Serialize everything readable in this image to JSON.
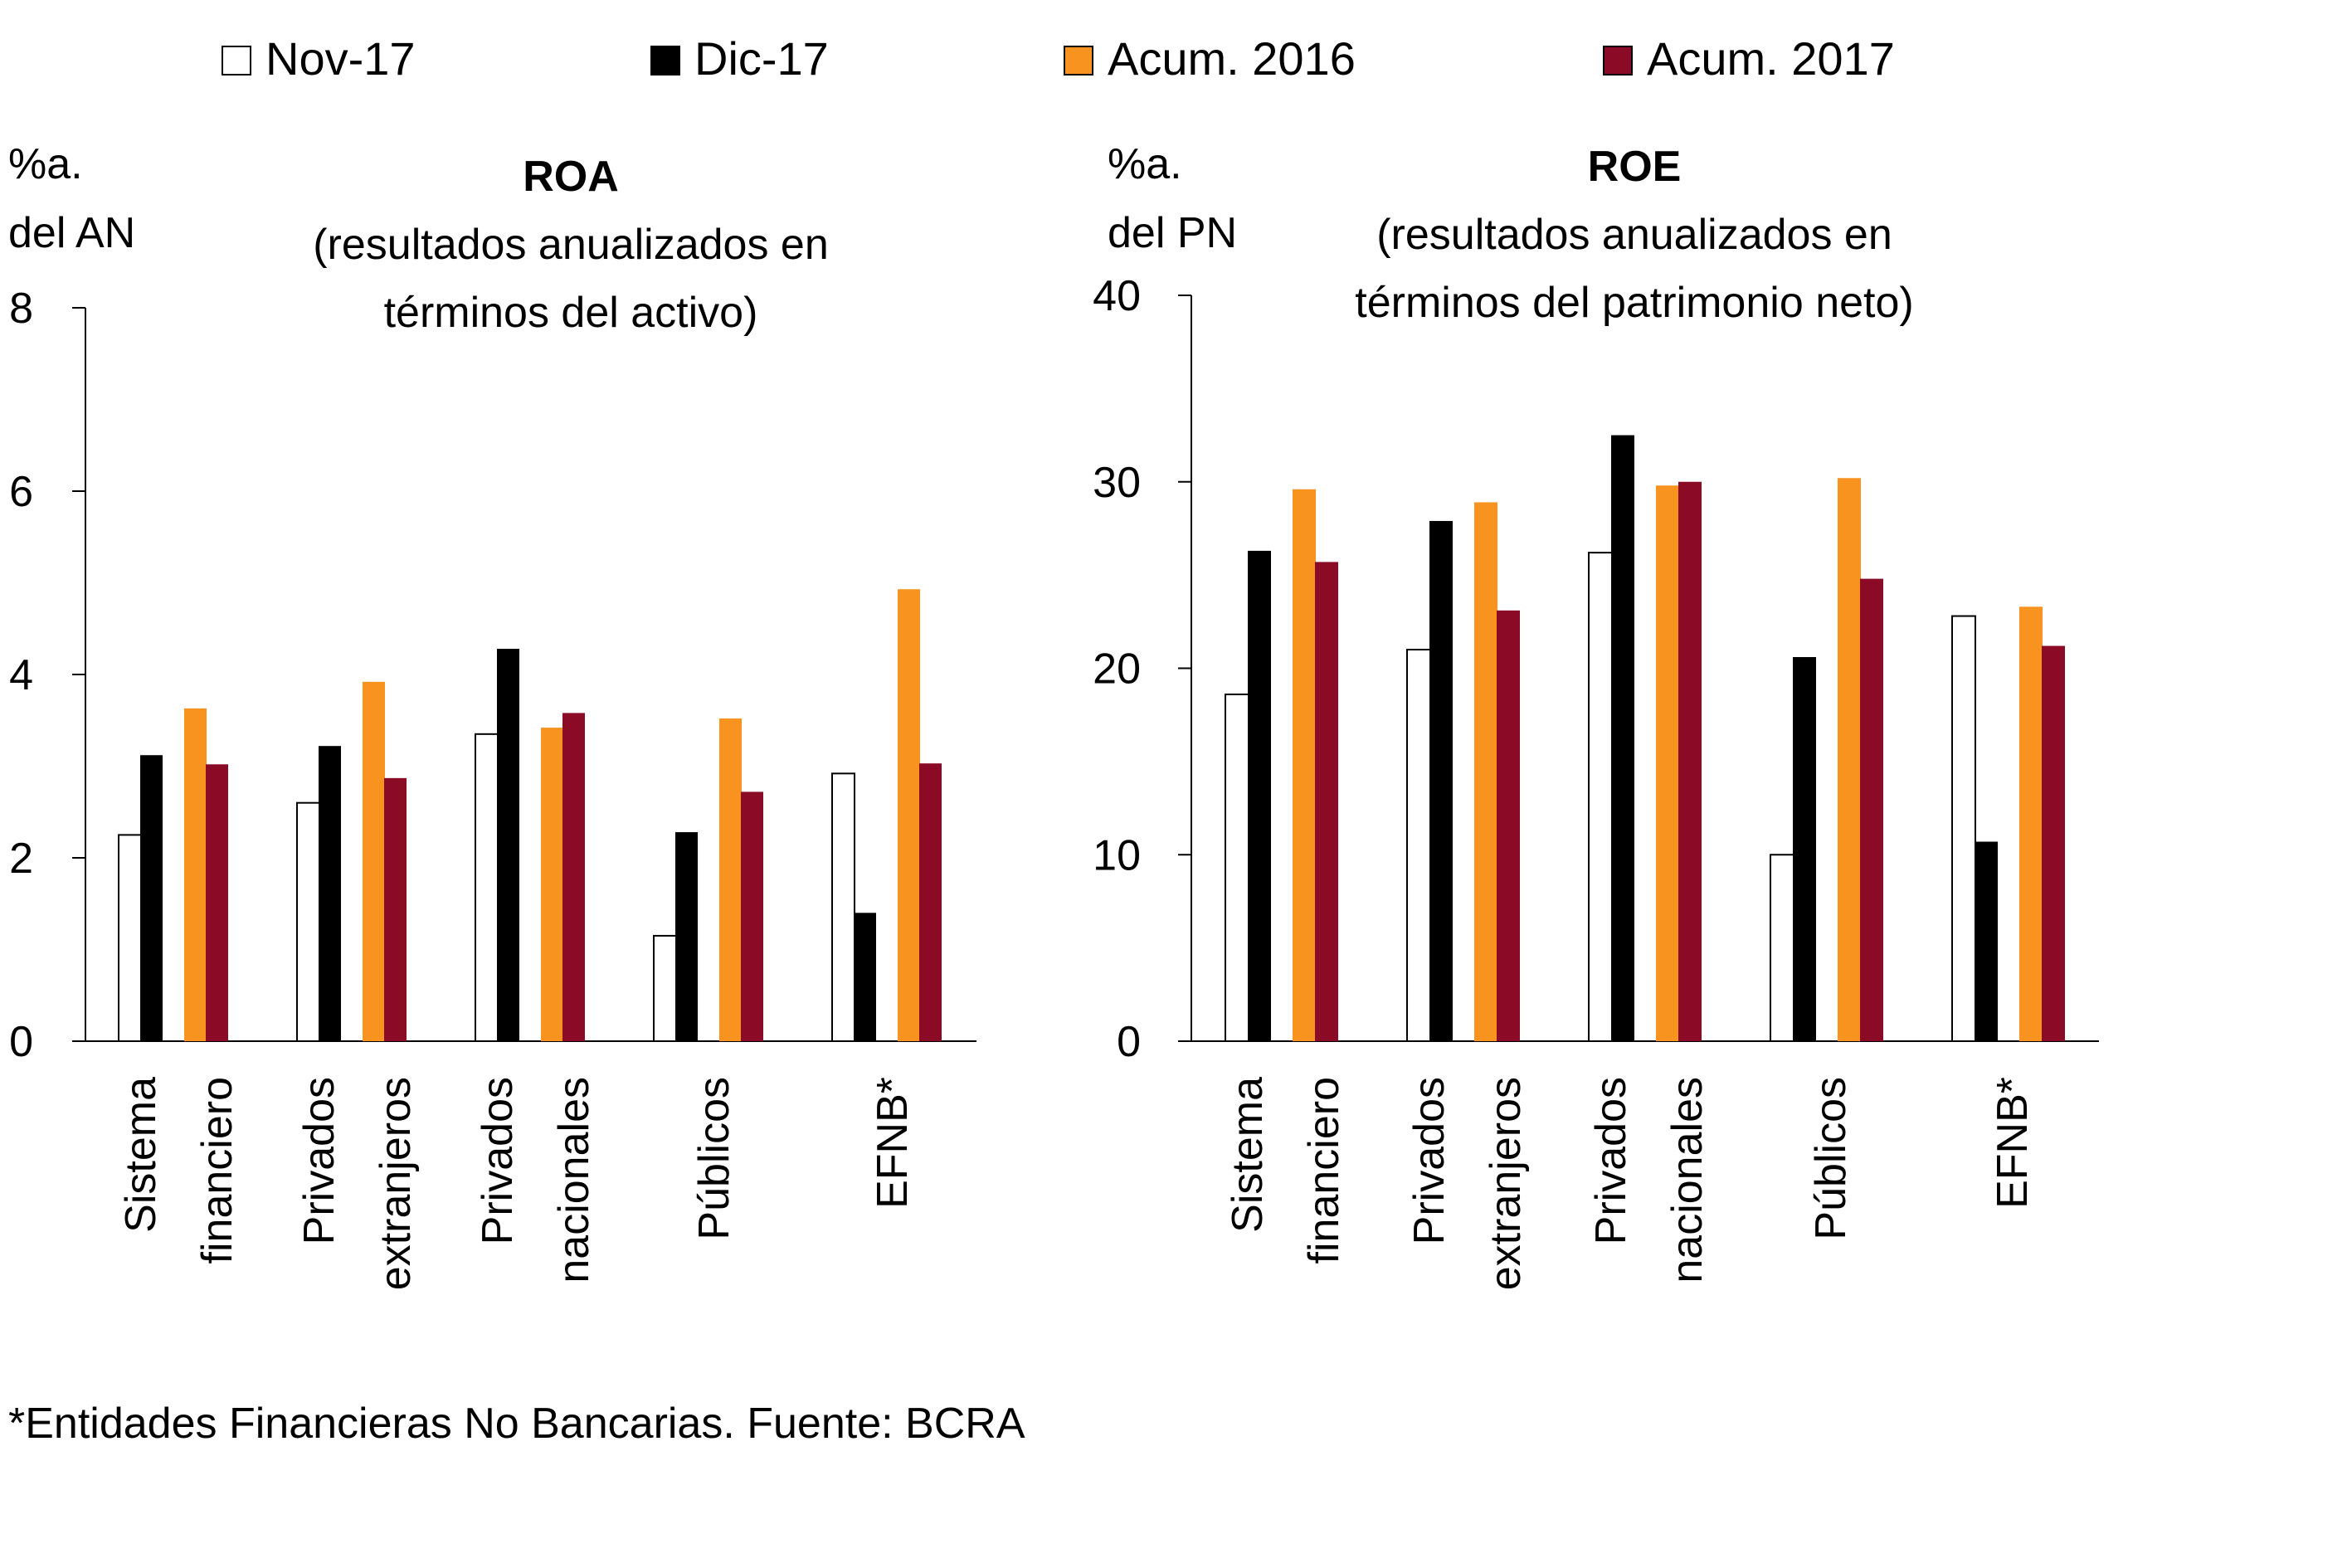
{
  "legend": {
    "series": [
      {
        "name": "Nov-17",
        "color": "#ffffff"
      },
      {
        "name": "Dic-17",
        "color": "#000000"
      },
      {
        "name": "Acum. 2016",
        "color": "#f7931e"
      },
      {
        "name": "Acum. 2017",
        "color": "#8b0a26"
      }
    ]
  },
  "footnote": "*Entidades Financieras No Bancarias. Fuente: BCRA",
  "chart_data": [
    {
      "type": "bar",
      "title": "ROA",
      "subtitle": [
        "(resultados anualizados en",
        "términos del activo)"
      ],
      "ylabel": [
        "%a.",
        "del AN"
      ],
      "ylim": [
        0,
        8
      ],
      "yticks": [
        0,
        2,
        4,
        6,
        8
      ],
      "categories": [
        [
          "Sistema",
          "financiero"
        ],
        [
          "Privados",
          "extranjeros"
        ],
        [
          "Privados",
          "nacionales"
        ],
        [
          "Públicos"
        ],
        [
          "EFNB*"
        ]
      ],
      "series": [
        {
          "name": "Nov-17",
          "values": [
            2.25,
            2.6,
            3.35,
            1.15,
            2.92
          ]
        },
        {
          "name": "Dic-17",
          "values": [
            3.12,
            3.22,
            4.28,
            2.28,
            1.4
          ]
        },
        {
          "name": "Acum. 2016",
          "values": [
            3.63,
            3.92,
            3.42,
            3.52,
            4.93
          ]
        },
        {
          "name": "Acum. 2017",
          "values": [
            3.02,
            2.87,
            3.58,
            2.72,
            3.03
          ]
        }
      ],
      "grid": false,
      "legend_position": "top"
    },
    {
      "type": "bar",
      "title": "ROE",
      "subtitle": [
        "(resultados anualizados en",
        "términos del patrimonio neto)"
      ],
      "ylabel": [
        "%a.",
        "del PN"
      ],
      "ylim": [
        0,
        40
      ],
      "yticks": [
        0,
        10,
        20,
        30,
        40
      ],
      "categories": [
        [
          "Sistema",
          "financiero"
        ],
        [
          "Privados",
          "extranjeros"
        ],
        [
          "Privados",
          "nacionales"
        ],
        [
          "Públicos"
        ],
        [
          "EFNB*"
        ]
      ],
      "series": [
        {
          "name": "Nov-17",
          "values": [
            18.6,
            21.0,
            26.2,
            10.0,
            22.8
          ]
        },
        {
          "name": "Dic-17",
          "values": [
            26.3,
            27.9,
            32.5,
            20.6,
            10.7
          ]
        },
        {
          "name": "Acum. 2016",
          "values": [
            29.6,
            28.9,
            29.8,
            30.2,
            23.3
          ]
        },
        {
          "name": "Acum. 2017",
          "values": [
            25.7,
            23.1,
            30.0,
            24.8,
            21.2
          ]
        }
      ],
      "grid": false,
      "legend_position": "top"
    }
  ]
}
